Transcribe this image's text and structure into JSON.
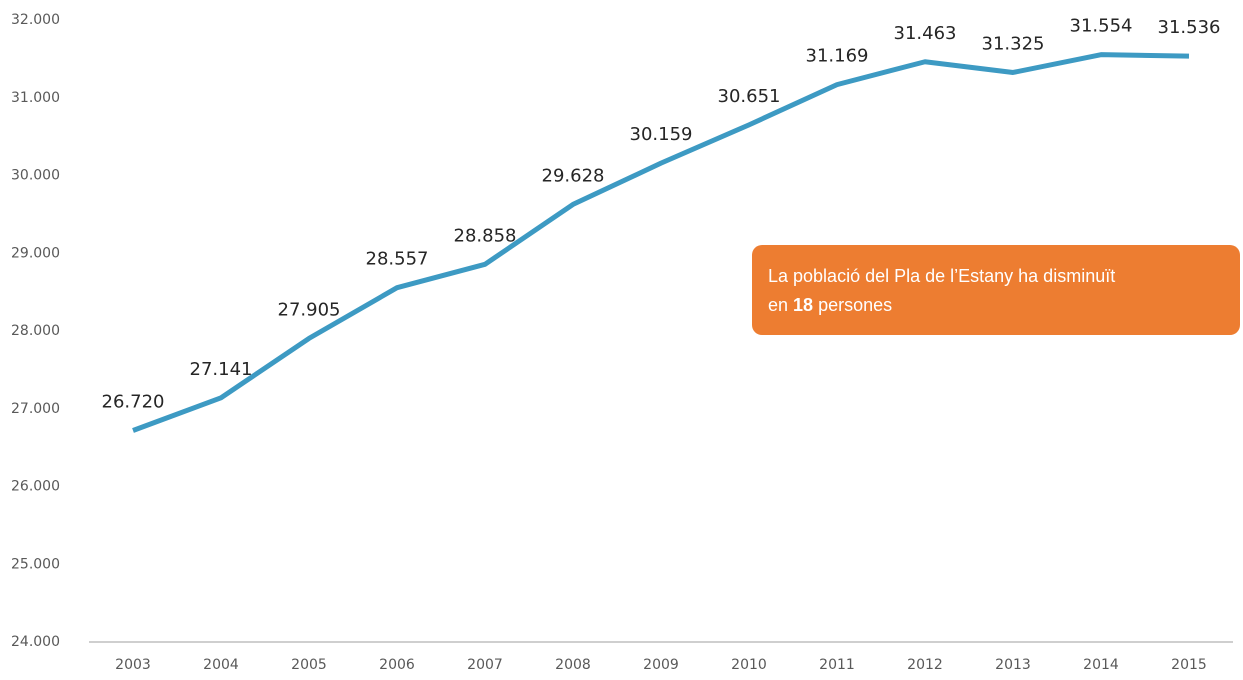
{
  "chart_data": {
    "type": "line",
    "categories": [
      "2003",
      "2004",
      "2005",
      "2006",
      "2007",
      "2008",
      "2009",
      "2010",
      "2011",
      "2012",
      "2013",
      "2014",
      "2015"
    ],
    "series": [
      {
        "color": "#3d9ac3",
        "values": [
          26720,
          27141,
          27905,
          28557,
          28858,
          29628,
          30159,
          30651,
          31169,
          31463,
          31325,
          31554,
          31536
        ],
        "value_labels": [
          "26.720",
          "27.141",
          "27.905",
          "28.557",
          "28.858",
          "29.628",
          "30.159",
          "30.651",
          "31.169",
          "31.463",
          "31.325",
          "31.554",
          "31.536"
        ]
      }
    ],
    "ylim": [
      24000,
      32000
    ],
    "yticks": [
      {
        "value": 24000,
        "label": "24.000"
      },
      {
        "value": 25000,
        "label": "25.000"
      },
      {
        "value": 26000,
        "label": "26.000"
      },
      {
        "value": 27000,
        "label": "27.000"
      },
      {
        "value": 28000,
        "label": "28.000"
      },
      {
        "value": 29000,
        "label": "29.000"
      },
      {
        "value": 30000,
        "label": "30.000"
      },
      {
        "value": 31000,
        "label": "31.000"
      },
      {
        "value": 32000,
        "label": "32.000"
      }
    ],
    "grid": false,
    "annotation": {
      "line1": "La població del Pla de l’Estany ha disminuït",
      "line2_start": "en",
      "line2_bold": "18",
      "line2_end": "persones",
      "color": "#ed7d31"
    }
  }
}
